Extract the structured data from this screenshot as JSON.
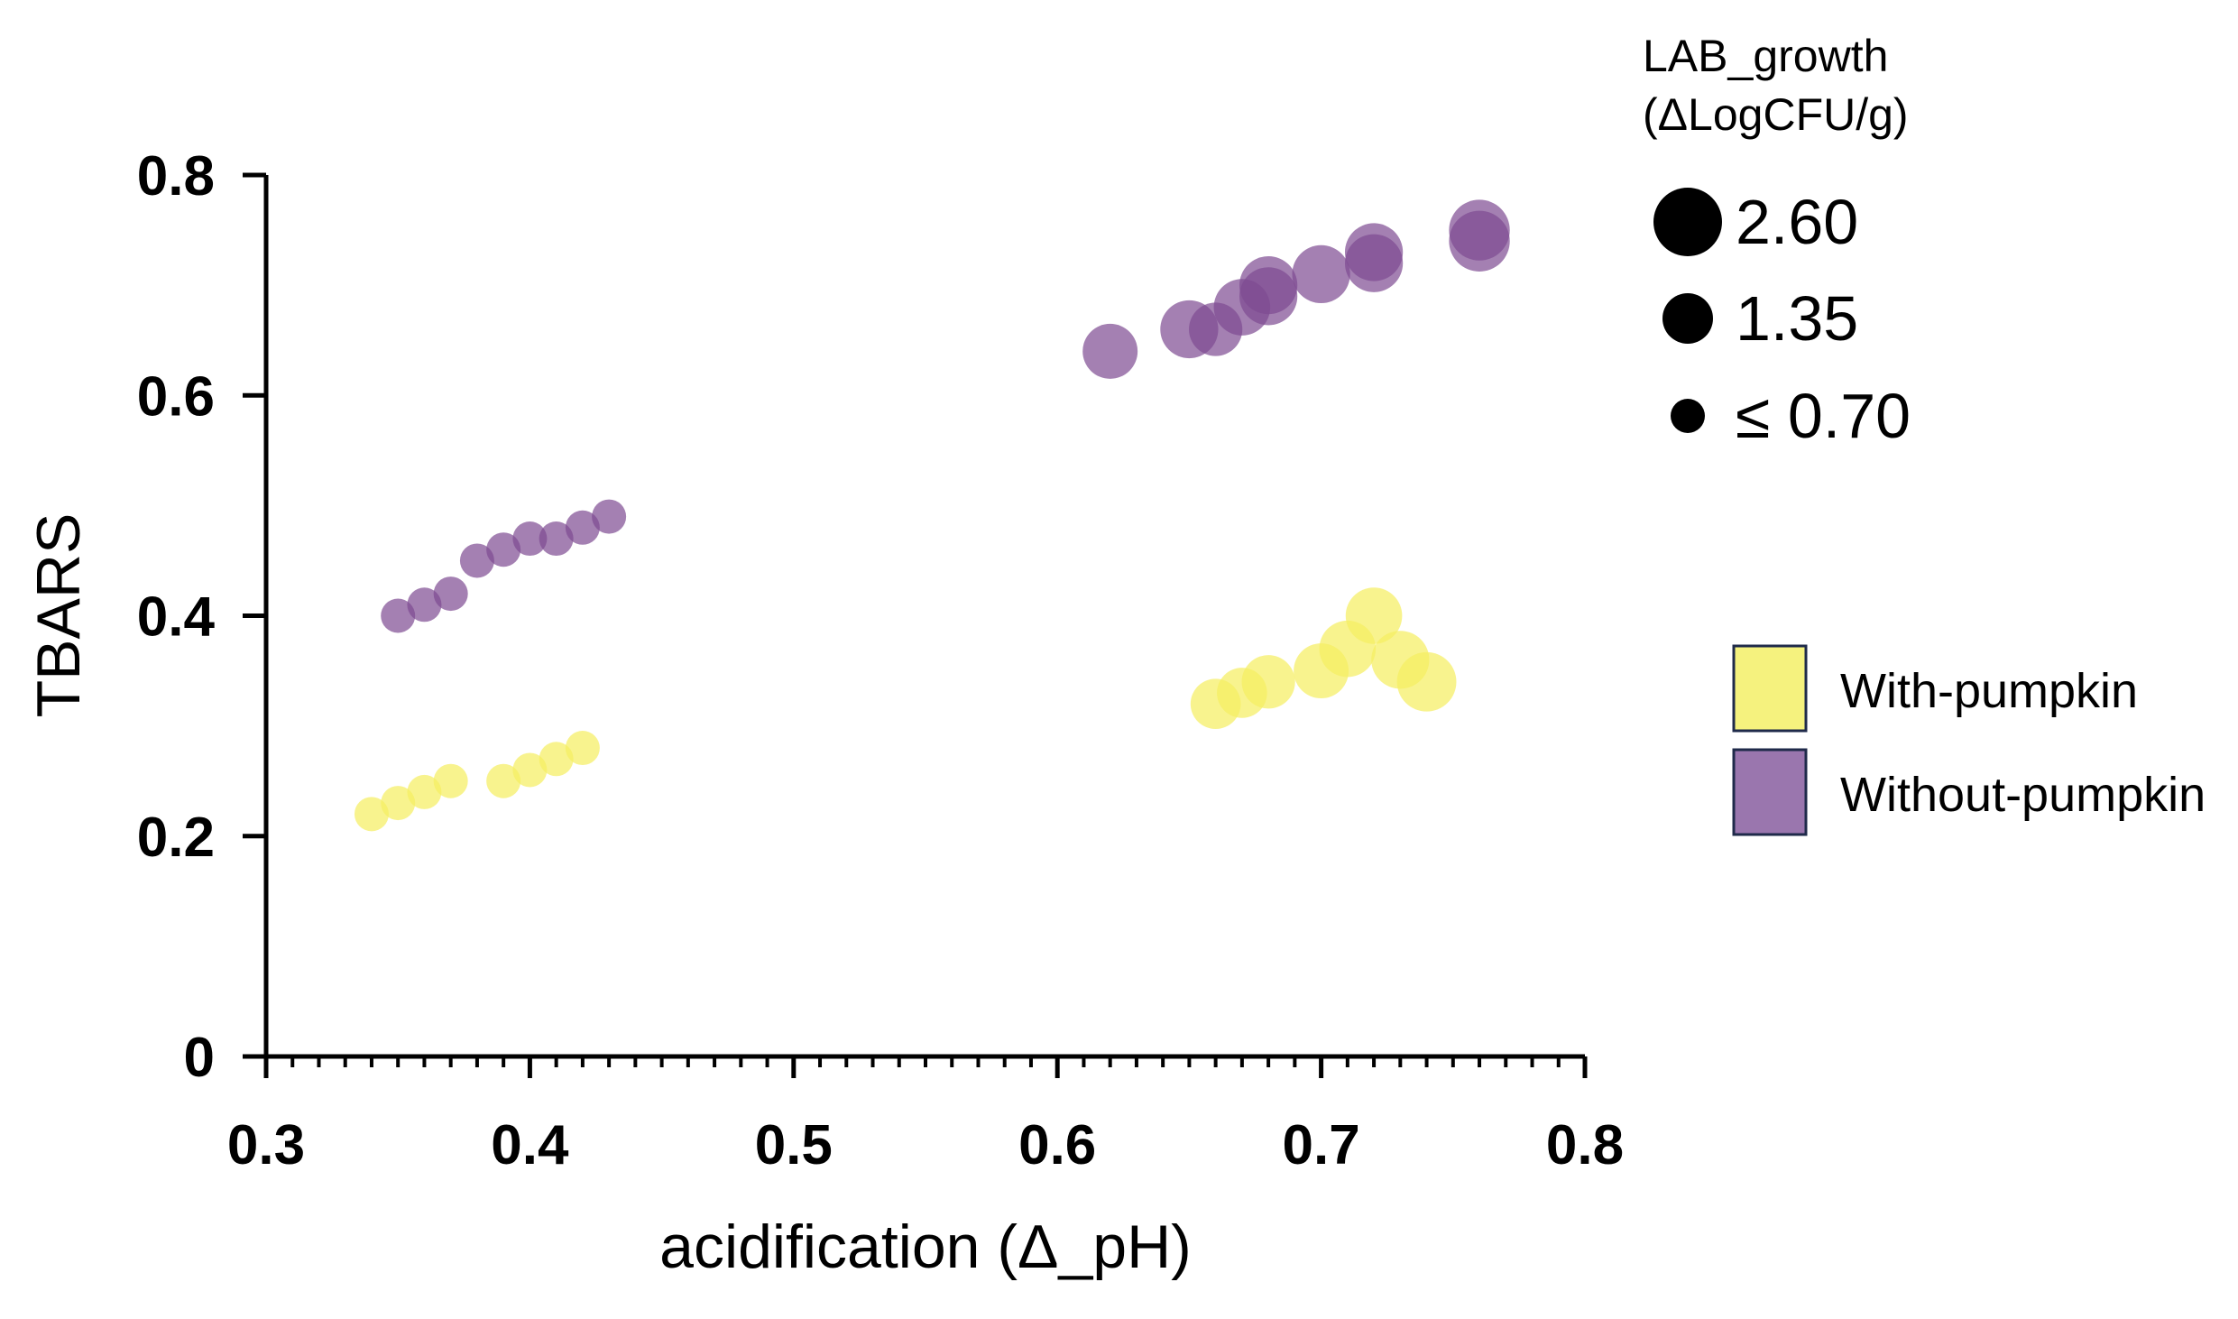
{
  "chart_data": {
    "type": "scatter",
    "xlabel": "acidification (Δ_pH)",
    "ylabel": "TBARS",
    "xlim": [
      0.3,
      0.8
    ],
    "ylim": [
      0,
      0.8
    ],
    "x_ticks": [
      "0.3",
      "0.4",
      "0.5",
      "0.6",
      "0.7",
      "0.8"
    ],
    "y_ticks": [
      "0",
      "0.2",
      "0.4",
      "0.6",
      "0.8"
    ],
    "x_tick_values": [
      0.3,
      0.4,
      0.5,
      0.6,
      0.7,
      0.8
    ],
    "y_tick_values": [
      0,
      0.2,
      0.4,
      0.6,
      0.8
    ],
    "x_minor_step": 0.01,
    "grid": false,
    "size_legend": {
      "title_line1": "LAB_growth",
      "title_line2": "(ΔLogCFU/g)",
      "entries": [
        {
          "label": "2.60",
          "value": 2.6
        },
        {
          "label": "1.35",
          "value": 1.35
        },
        {
          "label": "≤  0.70",
          "value": 0.7
        }
      ]
    },
    "series": [
      {
        "name": "With-pumpkin",
        "color": "#f5ee63",
        "legend_fill": "#f5f27e",
        "points": [
          {
            "x": 0.34,
            "y": 0.22,
            "size": 0.7
          },
          {
            "x": 0.35,
            "y": 0.23,
            "size": 0.7
          },
          {
            "x": 0.36,
            "y": 0.24,
            "size": 0.7
          },
          {
            "x": 0.37,
            "y": 0.25,
            "size": 0.7
          },
          {
            "x": 0.39,
            "y": 0.25,
            "size": 0.7
          },
          {
            "x": 0.4,
            "y": 0.26,
            "size": 0.7
          },
          {
            "x": 0.41,
            "y": 0.27,
            "size": 0.7
          },
          {
            "x": 0.42,
            "y": 0.28,
            "size": 0.7
          },
          {
            "x": 0.66,
            "y": 0.32,
            "size": 1.5
          },
          {
            "x": 0.67,
            "y": 0.33,
            "size": 1.5
          },
          {
            "x": 0.68,
            "y": 0.34,
            "size": 1.7
          },
          {
            "x": 0.7,
            "y": 0.35,
            "size": 1.8
          },
          {
            "x": 0.71,
            "y": 0.37,
            "size": 1.9
          },
          {
            "x": 0.72,
            "y": 0.4,
            "size": 1.9
          },
          {
            "x": 0.73,
            "y": 0.36,
            "size": 2.0
          },
          {
            "x": 0.74,
            "y": 0.34,
            "size": 2.1
          }
        ]
      },
      {
        "name": "Without-pumpkin",
        "color": "#7d4a92",
        "legend_fill": "#9a76ae",
        "points": [
          {
            "x": 0.35,
            "y": 0.4,
            "size": 0.7
          },
          {
            "x": 0.36,
            "y": 0.41,
            "size": 0.7
          },
          {
            "x": 0.37,
            "y": 0.42,
            "size": 0.7
          },
          {
            "x": 0.38,
            "y": 0.45,
            "size": 0.7
          },
          {
            "x": 0.39,
            "y": 0.46,
            "size": 0.7
          },
          {
            "x": 0.4,
            "y": 0.47,
            "size": 0.7
          },
          {
            "x": 0.41,
            "y": 0.47,
            "size": 0.7
          },
          {
            "x": 0.42,
            "y": 0.48,
            "size": 0.7
          },
          {
            "x": 0.43,
            "y": 0.49,
            "size": 0.7
          },
          {
            "x": 0.62,
            "y": 0.64,
            "size": 1.8
          },
          {
            "x": 0.65,
            "y": 0.66,
            "size": 2.0
          },
          {
            "x": 0.66,
            "y": 0.66,
            "size": 1.7
          },
          {
            "x": 0.67,
            "y": 0.68,
            "size": 1.9
          },
          {
            "x": 0.68,
            "y": 0.69,
            "size": 2.0
          },
          {
            "x": 0.68,
            "y": 0.7,
            "size": 2.0
          },
          {
            "x": 0.7,
            "y": 0.71,
            "size": 2.0
          },
          {
            "x": 0.72,
            "y": 0.72,
            "size": 2.0
          },
          {
            "x": 0.72,
            "y": 0.73,
            "size": 2.0
          },
          {
            "x": 0.76,
            "y": 0.74,
            "size": 2.2
          },
          {
            "x": 0.76,
            "y": 0.75,
            "size": 2.2
          }
        ]
      }
    ]
  }
}
